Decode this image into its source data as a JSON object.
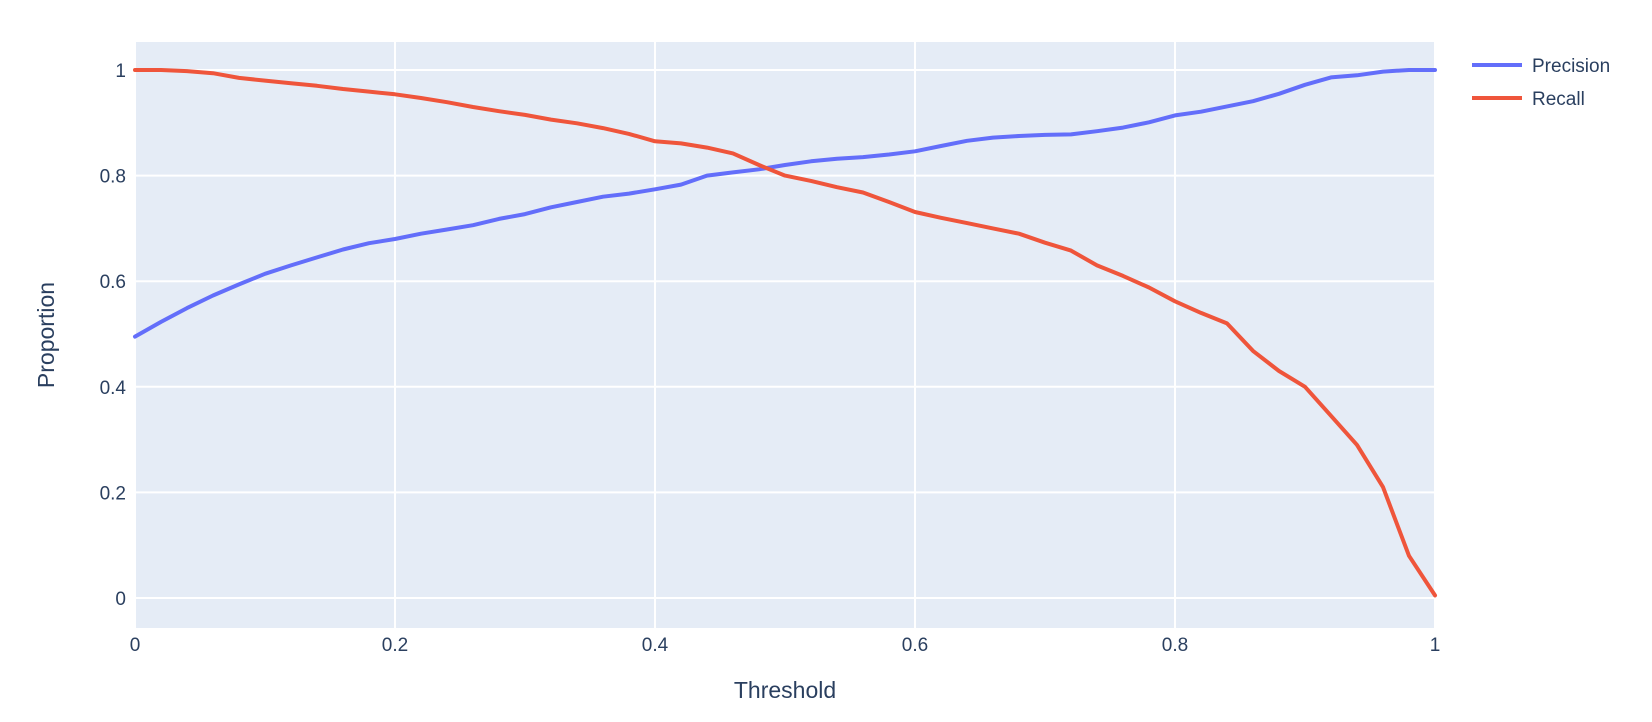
{
  "figure": {
    "background_color": "#FFFFFF",
    "plot_bg_color": "#E5ECF6",
    "grid_color": "#FFFFFF",
    "text_color": "#2A3F5F"
  },
  "chart_data": {
    "type": "line",
    "title": "",
    "xlabel": "Threshold",
    "ylabel": "Proportion",
    "xlim": [
      0,
      1
    ],
    "ylim": [
      -0.056,
      1.056
    ],
    "grid": true,
    "legend_position": "top-right-outside",
    "x_tick_labels": [
      "0",
      "0.2",
      "0.4",
      "0.6",
      "0.8",
      "1"
    ],
    "x_tick_values": [
      0,
      0.2,
      0.4,
      0.6,
      0.8,
      1
    ],
    "y_tick_labels": [
      "0",
      "0.2",
      "0.4",
      "0.6",
      "0.8",
      "1"
    ],
    "y_tick_values": [
      0,
      0.2,
      0.4,
      0.6,
      0.8,
      1
    ],
    "x": [
      0.0,
      0.02,
      0.04,
      0.06,
      0.08,
      0.1,
      0.12,
      0.14,
      0.16,
      0.18,
      0.2,
      0.22,
      0.24,
      0.26,
      0.28,
      0.3,
      0.32,
      0.34,
      0.36,
      0.38,
      0.4,
      0.42,
      0.44,
      0.46,
      0.48,
      0.5,
      0.52,
      0.54,
      0.56,
      0.58,
      0.6,
      0.62,
      0.64,
      0.66,
      0.68,
      0.7,
      0.72,
      0.74,
      0.76,
      0.78,
      0.8,
      0.82,
      0.84,
      0.86,
      0.88,
      0.9,
      0.92,
      0.94,
      0.96,
      0.98,
      1.0
    ],
    "series": [
      {
        "name": "Precision",
        "color": "#636EFA",
        "values": [
          0.495,
          0.523,
          0.549,
          0.573,
          0.594,
          0.614,
          0.63,
          0.645,
          0.66,
          0.672,
          0.68,
          0.69,
          0.698,
          0.706,
          0.718,
          0.727,
          0.74,
          0.75,
          0.76,
          0.766,
          0.774,
          0.783,
          0.8,
          0.806,
          0.812,
          0.82,
          0.827,
          0.832,
          0.835,
          0.84,
          0.846,
          0.856,
          0.866,
          0.872,
          0.875,
          0.877,
          0.878,
          0.884,
          0.891,
          0.901,
          0.914,
          0.921,
          0.931,
          0.941,
          0.955,
          0.972,
          0.986,
          0.99,
          0.997,
          1.0,
          1.0
        ]
      },
      {
        "name": "Recall",
        "color": "#EF553B",
        "values": [
          1.0,
          1.0,
          0.998,
          0.994,
          0.985,
          0.98,
          0.975,
          0.97,
          0.964,
          0.959,
          0.954,
          0.947,
          0.939,
          0.93,
          0.922,
          0.915,
          0.906,
          0.899,
          0.89,
          0.879,
          0.865,
          0.861,
          0.853,
          0.842,
          0.82,
          0.8,
          0.79,
          0.778,
          0.768,
          0.75,
          0.731,
          0.72,
          0.71,
          0.7,
          0.69,
          0.673,
          0.658,
          0.63,
          0.61,
          0.588,
          0.562,
          0.54,
          0.52,
          0.468,
          0.43,
          0.4,
          0.345,
          0.29,
          0.21,
          0.08,
          0.005
        ]
      }
    ]
  }
}
